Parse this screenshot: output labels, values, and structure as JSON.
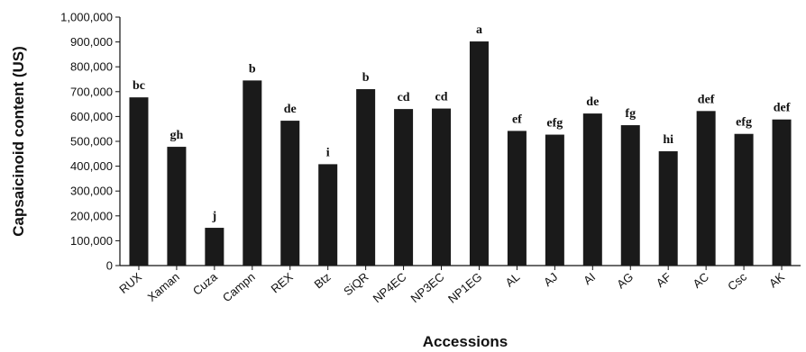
{
  "chart_data": {
    "type": "bar",
    "title": "",
    "xlabel": "Accessions",
    "ylabel": "Capsaicinoid content (US)",
    "ylim": [
      0,
      1000000
    ],
    "yticks": [
      0,
      100000,
      200000,
      300000,
      400000,
      500000,
      600000,
      700000,
      800000,
      900000,
      1000000
    ],
    "ytick_labels": [
      "0",
      "100,000",
      "200,000",
      "300,000",
      "400,000",
      "500,000",
      "600,000",
      "700,000",
      "800,000",
      "900,000",
      "1,000,000"
    ],
    "grid": false,
    "legend": "none",
    "bar_color": "#1a1a1a",
    "categories": [
      "RUX",
      "Xaman",
      "Cuza",
      "Campn",
      "REX",
      "Btz",
      "SiQR",
      "NP4EC",
      "NP3EC",
      "NP1EG",
      "AL",
      "AJ",
      "AI",
      "AG",
      "AF",
      "AC",
      "Csc",
      "AK"
    ],
    "values": [
      677000,
      478000,
      152000,
      745000,
      583000,
      408000,
      710000,
      630000,
      632000,
      902000,
      542000,
      527000,
      612000,
      565000,
      460000,
      622000,
      530000,
      588000
    ],
    "annotations": [
      "bc",
      "gh",
      "j",
      "b",
      "de",
      "i",
      "b",
      "cd",
      "cd",
      "a",
      "ef",
      "efg",
      "de",
      "fg",
      "hi",
      "def",
      "efg",
      "def"
    ]
  }
}
